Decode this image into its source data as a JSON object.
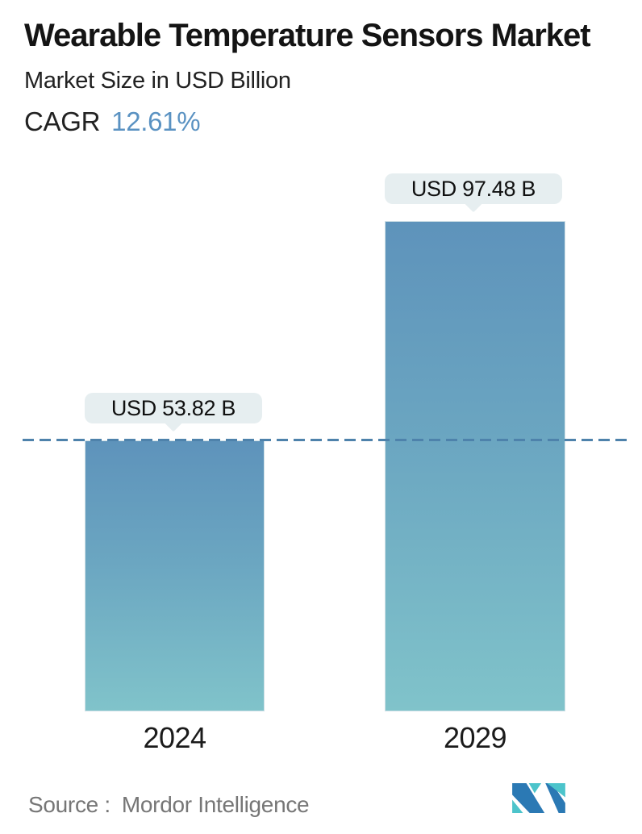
{
  "header": {
    "title": "Wearable Temperature Sensors Market",
    "subtitle": "Market Size in USD Billion",
    "cagr_label": "CAGR",
    "cagr_value": "12.61%"
  },
  "chart_data": {
    "type": "bar",
    "categories": [
      "2024",
      "2029"
    ],
    "values": [
      53.82,
      97.48
    ],
    "unit": "USD Billion",
    "value_labels": [
      "USD 53.82 B",
      "USD 97.48 B"
    ],
    "title": "Wearable Temperature Sensors Market",
    "subtitle": "Market Size in USD Billion",
    "cagr_percent": 12.61,
    "baseline_value": 53.82,
    "baseline_style": "dashed",
    "legend": "none",
    "grid": "off",
    "colors": {
      "bar_gradient_top": "#5e93bb",
      "bar_gradient_bottom": "#80c3ca",
      "dashed_line": "#4e82ab",
      "tooltip_bg": "#e6eef0",
      "accent_blue": "#5a92c2",
      "text_dark": "#141414",
      "source_gray": "#767676",
      "logo_blue": "#2b79b4",
      "logo_teal": "#4cc4cb"
    }
  },
  "footer": {
    "source_label": "Source :",
    "source_value": "Mordor Intelligence",
    "logo_name": "mordor-intelligence-logo"
  }
}
